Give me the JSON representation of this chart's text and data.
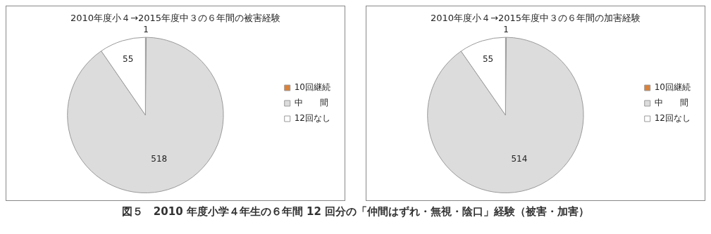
{
  "chart_data": [
    {
      "type": "pie",
      "title": "2010年度小４→2015年度中３の６年間の被害経験",
      "categories": [
        "10回継続",
        "中　　間",
        "12回なし"
      ],
      "values": [
        1,
        518,
        55
      ],
      "colors": [
        "#d9823b",
        "#dcdcdc",
        "#ffffff"
      ],
      "legend": "right",
      "data_labels": true,
      "annotations": [
        "図５　2010 年度小学４年生の６年間 12 回分の「仲間はずれ・無視・陰口」経験（被害・加害）"
      ]
    },
    {
      "type": "pie",
      "title": "2010年度小４→2015年度中３の６年間の加害経験",
      "categories": [
        "10回継続",
        "中　　間",
        "12回なし"
      ],
      "values": [
        1,
        514,
        55
      ],
      "colors": [
        "#d9823b",
        "#dcdcdc",
        "#ffffff"
      ],
      "legend": "right",
      "data_labels": true
    }
  ]
}
